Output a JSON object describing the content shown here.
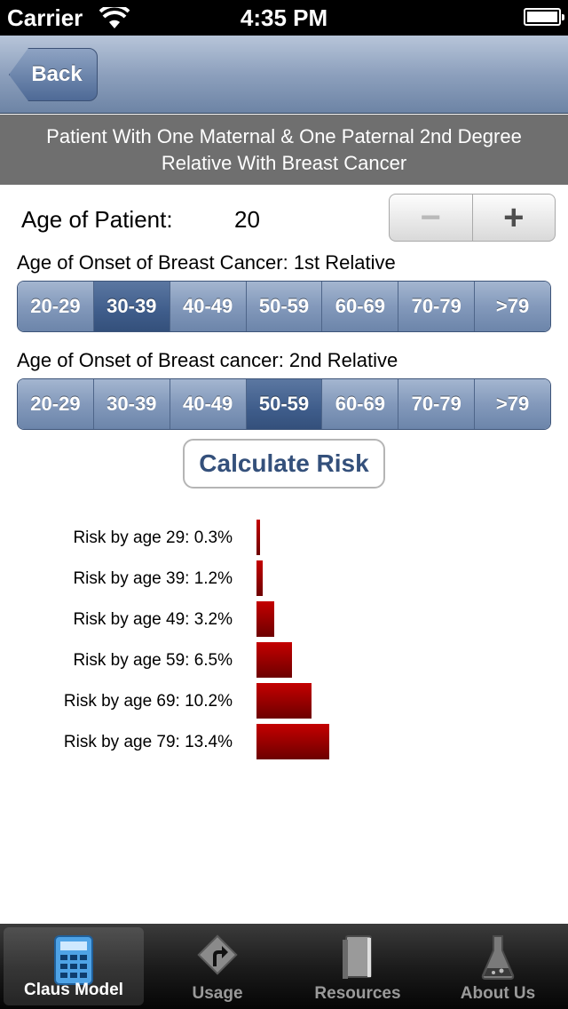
{
  "status": {
    "carrier": "Carrier",
    "time": "4:35 PM"
  },
  "nav": {
    "back_label": "Back"
  },
  "title": {
    "line1": "Patient With One Maternal & One Paternal 2nd Degree",
    "line2": "Relative With Breast Cancer"
  },
  "age": {
    "label": "Age of Patient:",
    "value": "20",
    "minus": "−",
    "plus": "+"
  },
  "first_relative": {
    "label": "Age of Onset of Breast Cancer: 1st Relative",
    "options": [
      "20-29",
      "30-39",
      "40-49",
      "50-59",
      "60-69",
      "70-79",
      ">79"
    ],
    "selected": "30-39"
  },
  "second_relative": {
    "label": "Age of Onset of Breast cancer: 2nd Relative",
    "options": [
      "20-29",
      "30-39",
      "40-49",
      "50-59",
      "60-69",
      "70-79",
      ">79"
    ],
    "selected": "50-59"
  },
  "calculate_label": "Calculate Risk",
  "chart_data": {
    "type": "bar",
    "orientation": "horizontal",
    "categories": [
      "Risk by age 29: 0.3%",
      "Risk by age 39: 1.2%",
      "Risk by age 49: 3.2%",
      "Risk by age 59: 6.5%",
      "Risk by age 69: 10.2%",
      "Risk by age 79: 13.4%"
    ],
    "values": [
      0.3,
      1.2,
      3.2,
      6.5,
      10.2,
      13.4
    ],
    "bar_color": "#a80000"
  },
  "tabs": [
    {
      "label": "Claus Model",
      "icon": "calculator-icon",
      "active": true
    },
    {
      "label": "Usage",
      "icon": "road-sign-icon",
      "active": false
    },
    {
      "label": "Resources",
      "icon": "book-icon",
      "active": false
    },
    {
      "label": "About Us",
      "icon": "flask-icon",
      "active": false
    }
  ]
}
